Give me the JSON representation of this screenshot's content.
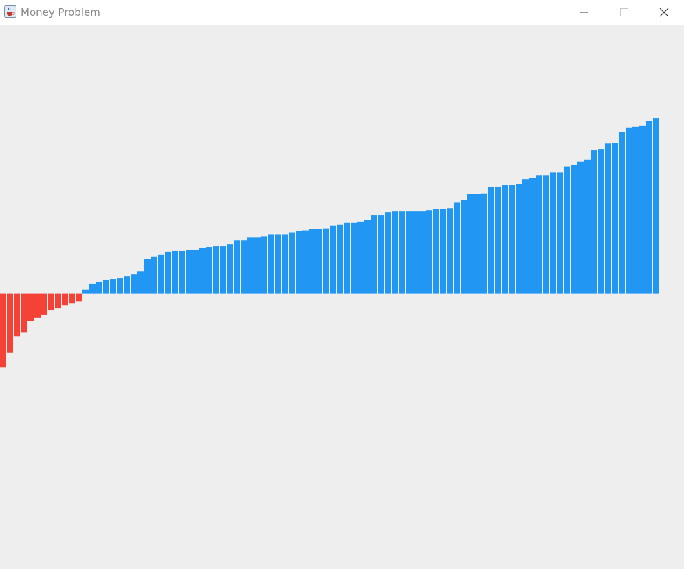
{
  "window": {
    "title": "Money Problem",
    "icon": "java-cup-icon",
    "controls": [
      "minimize-icon",
      "maximize-icon",
      "close-icon"
    ]
  },
  "colors": {
    "positive": "#2196f3",
    "negative": "#f44336",
    "background": "#eeeeee",
    "titlebar": "#ffffff"
  },
  "chart_data": {
    "type": "bar",
    "title": "",
    "xlabel": "",
    "ylabel": "",
    "grid": false,
    "legend": "none",
    "ylim": [
      -410,
      400
    ],
    "values": [
      -110,
      -88,
      -64,
      -58,
      -41,
      -36,
      -32,
      -25,
      -22,
      -18,
      -15,
      -12,
      6,
      14,
      17,
      20,
      21,
      23,
      26,
      29,
      33,
      51,
      55,
      58,
      62,
      64,
      64,
      65,
      65,
      67,
      69,
      70,
      70,
      73,
      79,
      79,
      83,
      83,
      85,
      88,
      88,
      88,
      91,
      93,
      94,
      96,
      96,
      97,
      101,
      102,
      105,
      105,
      107,
      109,
      117,
      117,
      121,
      122,
      122,
      122,
      122,
      122,
      124,
      126,
      126,
      127,
      135,
      139,
      148,
      148,
      149,
      158,
      159,
      161,
      162,
      163,
      170,
      172,
      176,
      176,
      180,
      180,
      189,
      191,
      196,
      199,
      213,
      215,
      223,
      224,
      240,
      247,
      248,
      250,
      256,
      261
    ]
  }
}
